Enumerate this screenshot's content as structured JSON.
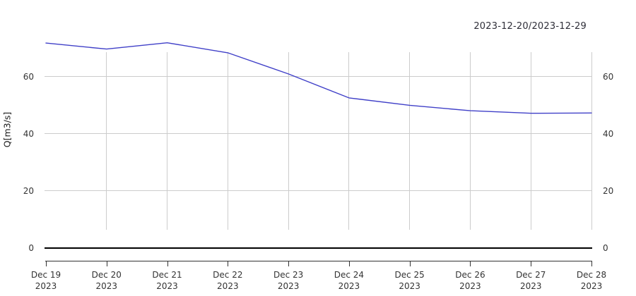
{
  "chart_data": {
    "type": "line",
    "title": "2023-12-20/2023-12-29",
    "ylabel": "Q[m3/s]",
    "x": [
      "2023-12-19",
      "2023-12-20",
      "2023-12-21",
      "2023-12-22",
      "2023-12-23",
      "2023-12-24",
      "2023-12-25",
      "2023-12-26",
      "2023-12-27",
      "2023-12-28"
    ],
    "x_tick_labels": [
      {
        "day": "Dec 19",
        "year": "2023"
      },
      {
        "day": "Dec 20",
        "year": "2023"
      },
      {
        "day": "Dec 21",
        "year": "2023"
      },
      {
        "day": "Dec 22",
        "year": "2023"
      },
      {
        "day": "Dec 23",
        "year": "2023"
      },
      {
        "day": "Dec 24",
        "year": "2023"
      },
      {
        "day": "Dec 25",
        "year": "2023"
      },
      {
        "day": "Dec 26",
        "year": "2023"
      },
      {
        "day": "Dec 27",
        "year": "2023"
      },
      {
        "day": "Dec 28",
        "year": "2023"
      }
    ],
    "y_ticks": [
      0,
      20,
      40,
      60
    ],
    "ylim": [
      0,
      72
    ],
    "grid": true,
    "legend": "none",
    "series": [
      {
        "name": "Q",
        "color": "#4040c8",
        "values": [
          71.7,
          69.6,
          71.8,
          68.3,
          60.9,
          52.5,
          49.9,
          48.0,
          47.1,
          47.2
        ]
      }
    ]
  },
  "colors": {
    "grid": "#cccccc",
    "zero_line": "#000000",
    "axis": "#333333",
    "tick_text": "#333333",
    "title_text": "#2e2e38",
    "series": "#4040c8",
    "background": "#ffffff"
  }
}
